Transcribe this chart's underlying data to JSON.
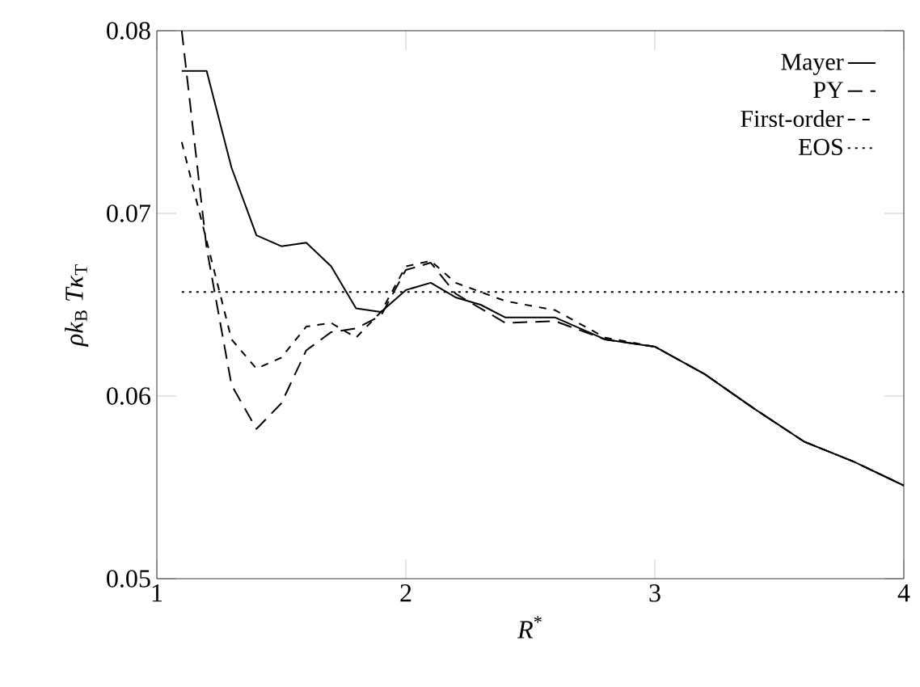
{
  "chart_data": {
    "type": "line",
    "xlabel": "*R*$^{*}$",
    "ylabel": "*ρk*$_{B}$ *Tκ*$_{T}$",
    "xlim": [
      1,
      4
    ],
    "ylim": [
      0.05,
      0.08
    ],
    "xticks": [
      1,
      2,
      3,
      4
    ],
    "yticks": [
      0.05,
      0.06,
      0.07,
      0.08
    ],
    "legend": "top right",
    "grid": false,
    "marker": "none",
    "series": [
      {
        "name": "Mayer",
        "color": "#000000",
        "line_style": "solid",
        "x": [
          1.1,
          1.2,
          1.3,
          1.4,
          1.5,
          1.6,
          1.7,
          1.8,
          1.9,
          2.0,
          2.1,
          2.2,
          2.3,
          2.4,
          2.6,
          2.8,
          3.0,
          3.2,
          3.4,
          3.6,
          3.8,
          4.0
        ],
        "values": [
          0.0778,
          0.0778,
          0.0725,
          0.0688,
          0.0682,
          0.0684,
          0.0671,
          0.0648,
          0.0646,
          0.0658,
          0.0662,
          0.0654,
          0.065,
          0.0643,
          0.0643,
          0.0631,
          0.0627,
          0.0612,
          0.0593,
          0.0575,
          0.0564,
          0.0551
        ]
      },
      {
        "name": "PY",
        "color": "#000000",
        "line_style": "dashed",
        "x": [
          1.1,
          1.2,
          1.3,
          1.4,
          1.5,
          1.6,
          1.7,
          1.8,
          1.9,
          2.0,
          2.1,
          2.2,
          2.4,
          2.6,
          2.8,
          3.0,
          3.2,
          3.4,
          3.6,
          3.8,
          4.0
        ],
        "values": [
          0.08,
          0.0681,
          0.0606,
          0.0582,
          0.0596,
          0.0625,
          0.0635,
          0.0637,
          0.0644,
          0.0669,
          0.0673,
          0.0656,
          0.064,
          0.0641,
          0.0631,
          0.0627,
          0.0612,
          0.0593,
          0.0575,
          0.0564,
          0.0551
        ]
      },
      {
        "name": "First-order",
        "color": "#000000",
        "line_style": "dashed",
        "x": [
          1.1,
          1.2,
          1.3,
          1.4,
          1.5,
          1.6,
          1.7,
          1.8,
          1.9,
          2.0,
          2.1,
          2.2,
          2.4,
          2.6,
          2.8,
          3.0,
          3.2,
          3.4,
          3.6,
          3.8,
          4.0
        ],
        "values": [
          0.0739,
          0.0685,
          0.0631,
          0.0615,
          0.0621,
          0.0638,
          0.064,
          0.0632,
          0.0646,
          0.0671,
          0.0674,
          0.0662,
          0.0652,
          0.0647,
          0.0632,
          0.0627,
          0.0612,
          0.0593,
          0.0575,
          0.0564,
          0.0551
        ]
      },
      {
        "name": "EOS",
        "color": "#000000",
        "line_style": "dotted",
        "x": [
          1.1,
          4.0
        ],
        "values": [
          0.0657,
          0.0657
        ]
      }
    ]
  }
}
